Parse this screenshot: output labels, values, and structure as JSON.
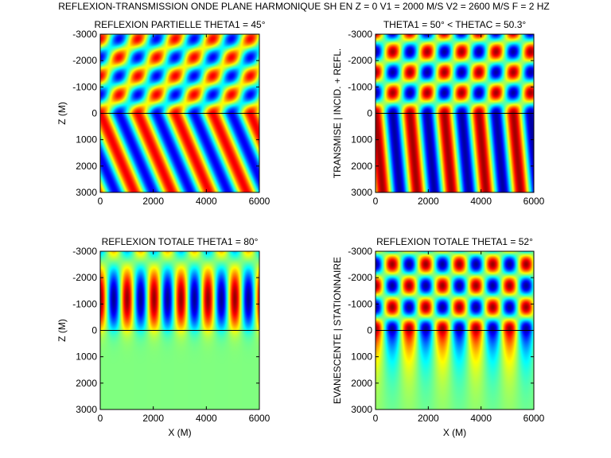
{
  "figure": {
    "title": "REFLEXION-TRANSMISSION ONDE PLANE HARMONIQUE SH EN Z = 0 V1 = 2000  M/S V2 = 2600 M/S  F = 2 HZ"
  },
  "chart_data": [
    {
      "type": "heatmap",
      "title": "REFLEXION PARTIELLE THETA1 = 45°",
      "xlabel": "",
      "ylabel": "Z (M)",
      "xlim": [
        0,
        6000
      ],
      "ylim": [
        -3000,
        3000
      ],
      "y_reversed": true,
      "xticks": [
        "0",
        "2000",
        "4000",
        "6000"
      ],
      "yticks": [
        "-3000",
        "-2000",
        "-1000",
        "0",
        "1000",
        "2000",
        "3000"
      ],
      "interface_line_z": 0,
      "v1": 2000,
      "v2": 2600,
      "f": 2,
      "theta1": 45,
      "regime": "partial",
      "colormap": "jet"
    },
    {
      "type": "heatmap",
      "title": "THETA1 = 50° < THETAC = 50.3°",
      "xlabel": "",
      "ylabel": "TRANSMISE | INCID. + REFL.",
      "xlim": [
        0,
        6000
      ],
      "ylim": [
        -3000,
        3000
      ],
      "y_reversed": true,
      "xticks": [
        "0",
        "2000",
        "4000",
        "6000"
      ],
      "yticks": [
        "-3000",
        "-2000",
        "-1000",
        "0",
        "1000",
        "2000",
        "3000"
      ],
      "interface_line_z": 0,
      "v1": 2000,
      "v2": 2600,
      "f": 2,
      "theta1": 50,
      "regime": "near-critical",
      "colormap": "jet"
    },
    {
      "type": "heatmap",
      "title": "REFLEXION TOTALE THETA1 = 80°",
      "xlabel": "X (M)",
      "ylabel": "Z (M)",
      "xlim": [
        0,
        6000
      ],
      "ylim": [
        -3000,
        3000
      ],
      "y_reversed": true,
      "xticks": [
        "0",
        "2000",
        "4000",
        "6000"
      ],
      "yticks": [
        "-3000",
        "-2000",
        "-1000",
        "0",
        "1000",
        "2000",
        "3000"
      ],
      "interface_line_z": 0,
      "v1": 2000,
      "v2": 2600,
      "f": 2,
      "theta1": 80,
      "regime": "total",
      "colormap": "jet"
    },
    {
      "type": "heatmap",
      "title": "REFLEXION TOTALE THETA1 = 52°",
      "xlabel": "X (M)",
      "ylabel": "EVANESCENTE | STATIONNAIRE",
      "xlim": [
        0,
        6000
      ],
      "ylim": [
        -3000,
        3000
      ],
      "y_reversed": true,
      "xticks": [
        "0",
        "2000",
        "4000",
        "6000"
      ],
      "yticks": [
        "-3000",
        "-2000",
        "-1000",
        "0",
        "1000",
        "2000",
        "3000"
      ],
      "interface_line_z": 0,
      "v1": 2000,
      "v2": 2600,
      "f": 2,
      "theta1": 52,
      "regime": "total",
      "colormap": "jet"
    }
  ]
}
